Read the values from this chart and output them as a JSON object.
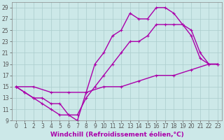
{
  "xlabel": "Windchill (Refroidissement éolien,°C)",
  "bg_color": "#cce8e8",
  "grid_color": "#aacccc",
  "line_color": "#aa00aa",
  "xlim": [
    -0.5,
    23.5
  ],
  "ylim": [
    9,
    30
  ],
  "xticks": [
    0,
    1,
    2,
    3,
    4,
    5,
    6,
    7,
    8,
    9,
    10,
    11,
    12,
    13,
    14,
    15,
    16,
    17,
    18,
    19,
    20,
    21,
    22,
    23
  ],
  "yticks": [
    9,
    11,
    13,
    15,
    17,
    19,
    21,
    23,
    25,
    27,
    29
  ],
  "line1_x": [
    0,
    1,
    2,
    3,
    4,
    5,
    6,
    7,
    8,
    9,
    10,
    11,
    12,
    13,
    14,
    15,
    16,
    17,
    18,
    19,
    20,
    21,
    22,
    23
  ],
  "line1_y": [
    15,
    14,
    13,
    12,
    11,
    10,
    10,
    9,
    14,
    19,
    21,
    24,
    25,
    28,
    27,
    27,
    29,
    29,
    28,
    26,
    24,
    20,
    19,
    19
  ],
  "line2_x": [
    0,
    1,
    2,
    3,
    4,
    5,
    6,
    7,
    8,
    9,
    10,
    11,
    12,
    13,
    14,
    15,
    16,
    17,
    18,
    19,
    20,
    21,
    22,
    23
  ],
  "line2_y": [
    15,
    14,
    13,
    13,
    12,
    12,
    10,
    10,
    13,
    15,
    17,
    19,
    21,
    23,
    23,
    24,
    26,
    26,
    26,
    26,
    25,
    21,
    19,
    19
  ],
  "line3_x": [
    0,
    2,
    4,
    6,
    8,
    10,
    12,
    14,
    16,
    18,
    20,
    22,
    23
  ],
  "line3_y": [
    15,
    15,
    14,
    14,
    14,
    15,
    15,
    16,
    17,
    17,
    18,
    19,
    19
  ],
  "markersize": 2.5,
  "linewidth": 1.0,
  "tick_fontsize": 5.5,
  "xlabel_fontsize": 6.5
}
